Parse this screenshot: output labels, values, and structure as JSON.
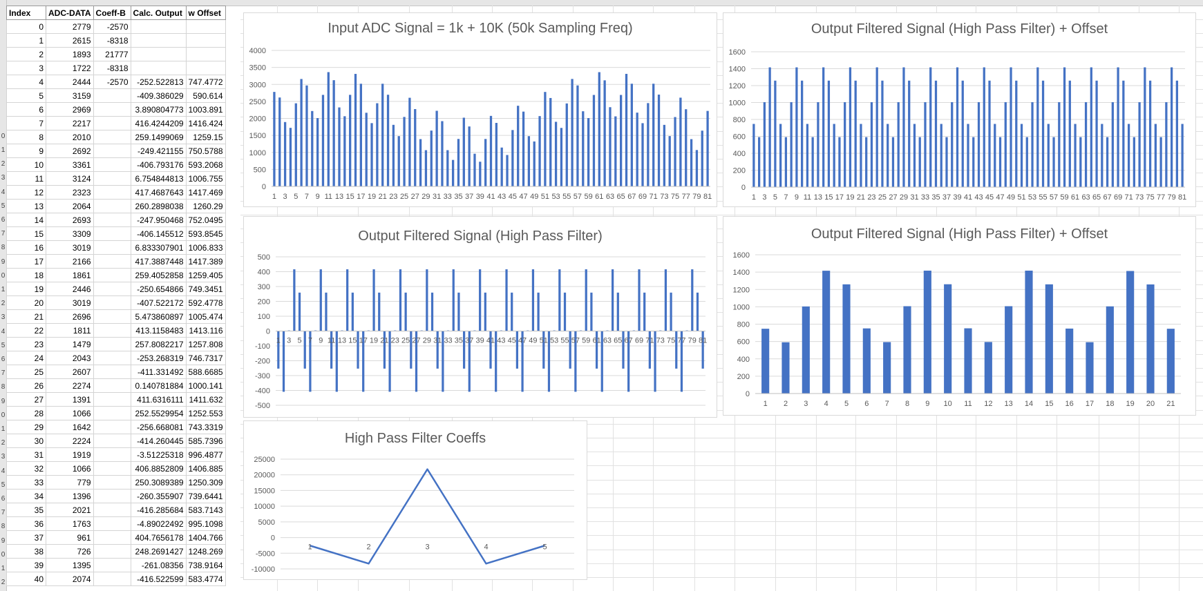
{
  "sheet": {
    "col_headers": [
      "Index",
      "ADC-DATA",
      "Coeff-B",
      "Calc. Output",
      "w Offset"
    ],
    "rows": [
      [
        "0",
        "2779",
        "-2570",
        "",
        ""
      ],
      [
        "1",
        "2615",
        "-8318",
        "",
        ""
      ],
      [
        "2",
        "1893",
        "21777",
        "",
        ""
      ],
      [
        "3",
        "1722",
        "-8318",
        "",
        ""
      ],
      [
        "4",
        "2444",
        "-2570",
        "-252.522813",
        "747.4772"
      ],
      [
        "5",
        "3159",
        "",
        "-409.386029",
        "590.614"
      ],
      [
        "6",
        "2969",
        "",
        "3.890804773",
        "1003.891"
      ],
      [
        "7",
        "2217",
        "",
        "416.4244209",
        "1416.424"
      ],
      [
        "8",
        "2010",
        "",
        "259.1499069",
        "1259.15"
      ],
      [
        "9",
        "2692",
        "",
        "-249.421155",
        "750.5788"
      ],
      [
        "10",
        "3361",
        "",
        "-406.793176",
        "593.2068"
      ],
      [
        "11",
        "3124",
        "",
        "6.754844813",
        "1006.755"
      ],
      [
        "12",
        "2323",
        "",
        "417.4687643",
        "1417.469"
      ],
      [
        "13",
        "2064",
        "",
        "260.2898038",
        "1260.29"
      ],
      [
        "14",
        "2693",
        "",
        "-247.950468",
        "752.0495"
      ],
      [
        "15",
        "3309",
        "",
        "-406.145512",
        "593.8545"
      ],
      [
        "16",
        "3019",
        "",
        "6.833307901",
        "1006.833"
      ],
      [
        "17",
        "2166",
        "",
        "417.3887448",
        "1417.389"
      ],
      [
        "18",
        "1861",
        "",
        "259.4052858",
        "1259.405"
      ],
      [
        "19",
        "2446",
        "",
        "-250.654866",
        "749.3451"
      ],
      [
        "20",
        "3019",
        "",
        "-407.522172",
        "592.4778"
      ],
      [
        "21",
        "2696",
        "",
        "5.473860897",
        "1005.474"
      ],
      [
        "22",
        "1811",
        "",
        "413.1158483",
        "1413.116"
      ],
      [
        "23",
        "1479",
        "",
        "257.8082217",
        "1257.808"
      ],
      [
        "24",
        "2043",
        "",
        "-253.268319",
        "746.7317"
      ],
      [
        "25",
        "2607",
        "",
        "-411.331492",
        "588.6685"
      ],
      [
        "26",
        "2274",
        "",
        "0.140781884",
        "1000.141"
      ],
      [
        "27",
        "1391",
        "",
        "411.6316111",
        "1411.632"
      ],
      [
        "28",
        "1066",
        "",
        "252.5529954",
        "1252.553"
      ],
      [
        "29",
        "1642",
        "",
        "-256.668081",
        "743.3319"
      ],
      [
        "30",
        "2224",
        "",
        "-414.260445",
        "585.7396"
      ],
      [
        "31",
        "1919",
        "",
        "-3.51225318",
        "996.4877"
      ],
      [
        "32",
        "1066",
        "",
        "406.8852809",
        "1406.885"
      ],
      [
        "33",
        "779",
        "",
        "250.3089389",
        "1250.309"
      ],
      [
        "34",
        "1396",
        "",
        "-260.355907",
        "739.6441"
      ],
      [
        "35",
        "2021",
        "",
        "-416.285684",
        "583.7143"
      ],
      [
        "36",
        "1763",
        "",
        "-4.89022492",
        "995.1098"
      ],
      [
        "37",
        "961",
        "",
        "404.7656178",
        "1404.766"
      ],
      [
        "38",
        "726",
        "",
        "248.2691427",
        "1248.269"
      ],
      [
        "39",
        "1395",
        "",
        "-261.08356",
        "738.9164"
      ],
      [
        "40",
        "2074",
        "",
        "-416.522599",
        "583.4774"
      ]
    ],
    "row_numbers": [
      "",
      "",
      "",
      "",
      "",
      "",
      "",
      "",
      "",
      "0",
      "1",
      "2",
      "3",
      "4",
      "5",
      "6",
      "7",
      "8",
      "9",
      "0",
      "1",
      "2",
      "3",
      "4",
      "5",
      "6",
      "7",
      "8",
      "9",
      "0",
      "1",
      "2",
      "3",
      "4",
      "5",
      "6",
      "7",
      "8",
      "9",
      "0",
      "1",
      "2"
    ]
  },
  "chart_data": [
    {
      "type": "bar",
      "title": "Input ADC Signal = 1k + 10K (50k Sampling Freq)",
      "ylim": [
        0,
        4000
      ],
      "yticks": [
        0,
        500,
        1000,
        1500,
        2000,
        2500,
        3000,
        3500,
        4000
      ],
      "xtick_labels": [
        "1",
        "3",
        "5",
        "7",
        "9",
        "11",
        "13",
        "15",
        "17",
        "19",
        "21",
        "23",
        "25",
        "27",
        "29",
        "31",
        "33",
        "35",
        "37",
        "39",
        "41",
        "43",
        "45",
        "47",
        "49",
        "51",
        "53",
        "55",
        "57",
        "59",
        "61",
        "63",
        "65",
        "67",
        "69",
        "71",
        "73",
        "75",
        "77",
        "79",
        "81"
      ],
      "values": [
        2779,
        2615,
        1893,
        1722,
        2444,
        3159,
        2969,
        2217,
        2010,
        2692,
        3361,
        3124,
        2323,
        2064,
        2693,
        3309,
        3019,
        2166,
        1861,
        2446,
        3019,
        2696,
        1811,
        1479,
        2043,
        2607,
        2274,
        1391,
        1066,
        1642,
        2224,
        1919,
        1066,
        779,
        1396,
        2021,
        1763,
        961,
        726,
        1395,
        2074,
        1868,
        1143,
        924,
        1658,
        2372,
        2200,
        1478,
        1322,
        2068,
        2778,
        2600,
        1900,
        1720,
        2440,
        3160,
        2970,
        2210,
        2010,
        2690,
        3360,
        3120,
        2330,
        2060,
        2690,
        3310,
        3020,
        2170,
        1860,
        2450,
        3020,
        2700,
        1810,
        1480,
        2040,
        2610,
        2270,
        1390,
        1070,
        1640,
        2220
      ],
      "bar_color": "#4472c4",
      "grid": true
    },
    {
      "type": "bar",
      "title": "Output Filtered Signal (High Pass Filter) + Offset",
      "ylim": [
        0,
        1600
      ],
      "yticks": [
        0,
        200,
        400,
        600,
        800,
        1000,
        1200,
        1400,
        1600
      ],
      "xtick_labels": [
        "1",
        "3",
        "5",
        "7",
        "9",
        "11",
        "13",
        "15",
        "17",
        "19",
        "21",
        "23",
        "25",
        "27",
        "29",
        "31",
        "33",
        "35",
        "37",
        "39",
        "41",
        "43",
        "45",
        "47",
        "49",
        "51",
        "53",
        "55",
        "57",
        "59",
        "61",
        "63",
        "65",
        "67",
        "69",
        "71",
        "73",
        "75",
        "77",
        "79",
        "81"
      ],
      "pattern": [
        747,
        591,
        1004,
        1416,
        1259
      ],
      "count": 81,
      "bar_color": "#4472c4",
      "grid": true
    },
    {
      "type": "bar",
      "title": "Output Filtered Signal (High Pass Filter)",
      "ylim": [
        -500,
        500
      ],
      "yticks": [
        -500,
        -400,
        -300,
        -200,
        -100,
        0,
        100,
        200,
        300,
        400,
        500
      ],
      "xtick_labels": [
        "1",
        "3",
        "5",
        "7",
        "9",
        "11",
        "13",
        "15",
        "17",
        "19",
        "21",
        "23",
        "25",
        "27",
        "29",
        "31",
        "33",
        "35",
        "37",
        "39",
        "41",
        "43",
        "45",
        "47",
        "49",
        "51",
        "53",
        "55",
        "57",
        "59",
        "61",
        "63",
        "65",
        "67",
        "69",
        "71",
        "73",
        "75",
        "77",
        "79",
        "81"
      ],
      "pattern": [
        -253,
        -409,
        4,
        416,
        259
      ],
      "count": 81,
      "bar_color": "#4472c4",
      "grid": true
    },
    {
      "type": "bar",
      "title": "Output Filtered Signal (High Pass Filter) + Offset",
      "ylim": [
        0,
        1600
      ],
      "yticks": [
        0,
        200,
        400,
        600,
        800,
        1000,
        1200,
        1400,
        1600
      ],
      "categories": [
        "1",
        "2",
        "3",
        "4",
        "5",
        "6",
        "7",
        "8",
        "9",
        "10",
        "11",
        "12",
        "13",
        "14",
        "15",
        "16",
        "17",
        "18",
        "19",
        "20",
        "21"
      ],
      "values": [
        747,
        591,
        1004,
        1416,
        1259,
        751,
        593,
        1007,
        1417,
        1260,
        752,
        594,
        1007,
        1417,
        1259,
        749,
        592,
        1005,
        1413,
        1258,
        747
      ],
      "bar_color": "#4472c4",
      "grid": true
    },
    {
      "type": "line",
      "title": "High Pass Filter Coeffs",
      "ylim": [
        -10000,
        25000
      ],
      "yticks": [
        -10000,
        -5000,
        0,
        5000,
        10000,
        15000,
        20000,
        25000
      ],
      "categories": [
        "1",
        "2",
        "3",
        "4",
        "5"
      ],
      "values": [
        -2570,
        -8318,
        21777,
        -8318,
        -2570
      ],
      "line_color": "#4472c4",
      "grid": true
    }
  ]
}
